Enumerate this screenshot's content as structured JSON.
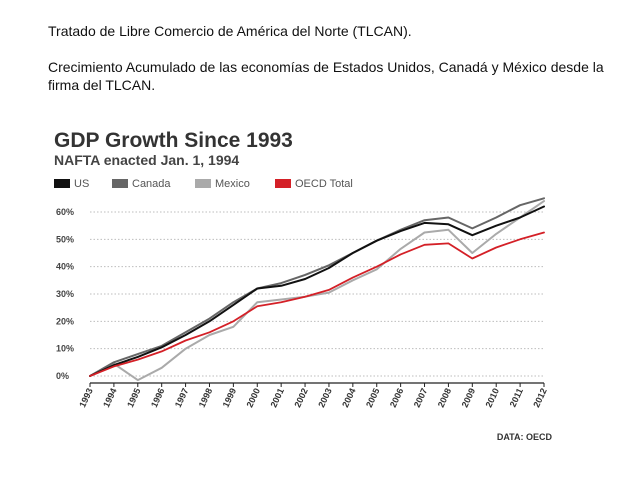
{
  "caption": {
    "line1": "Tratado de Libre Comercio de América del Norte (TLCAN).",
    "line2": "Crecimiento Acumulado de las economías de Estados Unidos, Canadá y México desde la firma del TLCAN."
  },
  "chart_data": {
    "type": "line",
    "title": "GDP Growth Since 1993",
    "subtitle": "NAFTA enacted Jan. 1, 1994",
    "source": "DATA: OECD",
    "xlabel": "",
    "ylabel": "",
    "ylim": [
      0,
      60
    ],
    "y_ticks": [
      0,
      10,
      20,
      30,
      40,
      50,
      60
    ],
    "y_tick_labels": [
      "0%",
      "10%",
      "20%",
      "30%",
      "40%",
      "50%",
      "60%"
    ],
    "grid": true,
    "legend_position": "top-left",
    "x": [
      "1993",
      "1994",
      "1995",
      "1996",
      "1997",
      "1998",
      "1999",
      "2000",
      "2001",
      "2002",
      "2003",
      "2004",
      "2005",
      "2006",
      "2007",
      "2008",
      "2009",
      "2010",
      "2011",
      "2012"
    ],
    "series": [
      {
        "name": "US",
        "color": "#111111",
        "values": [
          0,
          4,
          7,
          10.5,
          15,
          20,
          26,
          32,
          33,
          35.5,
          39.5,
          45,
          49.5,
          53,
          56,
          55.5,
          51.5,
          55,
          58,
          62
        ]
      },
      {
        "name": "Canada",
        "color": "#666666",
        "values": [
          0,
          5,
          8,
          11,
          16,
          21,
          27,
          32,
          34,
          37,
          40.5,
          45,
          49.5,
          53.5,
          57,
          58,
          54,
          58,
          62.5,
          65
        ]
      },
      {
        "name": "Mexico",
        "color": "#aaaaaa",
        "values": [
          0,
          4.5,
          -1.5,
          3,
          10,
          15,
          18,
          27,
          28,
          29,
          30.5,
          35,
          39,
          46.5,
          52.5,
          53.5,
          45,
          52,
          58,
          64
        ]
      },
      {
        "name": "OECD Total",
        "color": "#d42027",
        "values": [
          0,
          3.5,
          6,
          9,
          13,
          16,
          20,
          25.5,
          27,
          29,
          31.5,
          36,
          40,
          44.5,
          48,
          48.5,
          43,
          47,
          50,
          52.5
        ]
      }
    ]
  }
}
